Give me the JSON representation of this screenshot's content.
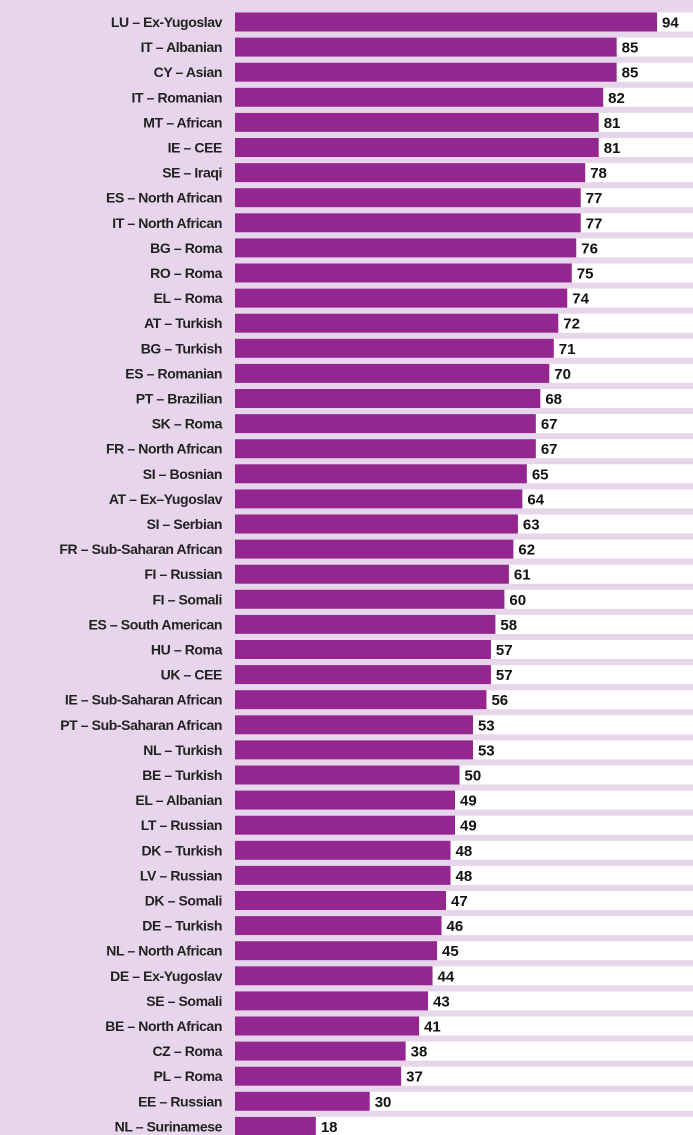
{
  "chart_data": {
    "type": "bar",
    "orientation": "horizontal",
    "color": "#93278f",
    "categories": [
      "LU – Ex-Yugoslav",
      "IT – Albanian",
      "CY – Asian",
      "IT – Romanian",
      "MT – African",
      "IE – CEE",
      "SE – Iraqi",
      "ES – North African",
      "IT – North African",
      "BG – Roma",
      "RO – Roma",
      "EL – Roma",
      "AT – Turkish",
      "BG – Turkish",
      "ES – Romanian",
      "PT – Brazilian",
      "SK – Roma",
      "FR – North African",
      "SI – Bosnian",
      "AT – Ex–Yugoslav",
      "SI – Serbian",
      "FR – Sub-Saharan African",
      "FI – Russian",
      "FI – Somali",
      "ES – South American",
      "HU – Roma",
      "UK – CEE",
      "IE – Sub-Saharan African",
      "PT – Sub-Saharan African",
      "NL – Turkish",
      "BE – Turkish",
      "EL – Albanian",
      "LT – Russian",
      "DK – Turkish",
      "LV – Russian",
      "DK – Somali",
      "DE – Turkish",
      "NL – North African",
      "DE – Ex-Yugoslav",
      "SE – Somali",
      "BE – North African",
      "CZ – Roma",
      "PL – Roma",
      "EE – Russian",
      "NL – Surinamese"
    ],
    "values": [
      94,
      85,
      85,
      82,
      81,
      81,
      78,
      77,
      77,
      76,
      75,
      74,
      72,
      71,
      70,
      68,
      67,
      67,
      65,
      64,
      63,
      62,
      61,
      60,
      58,
      57,
      57,
      56,
      53,
      53,
      50,
      49,
      49,
      48,
      48,
      47,
      46,
      45,
      44,
      43,
      41,
      38,
      37,
      30,
      18
    ]
  }
}
